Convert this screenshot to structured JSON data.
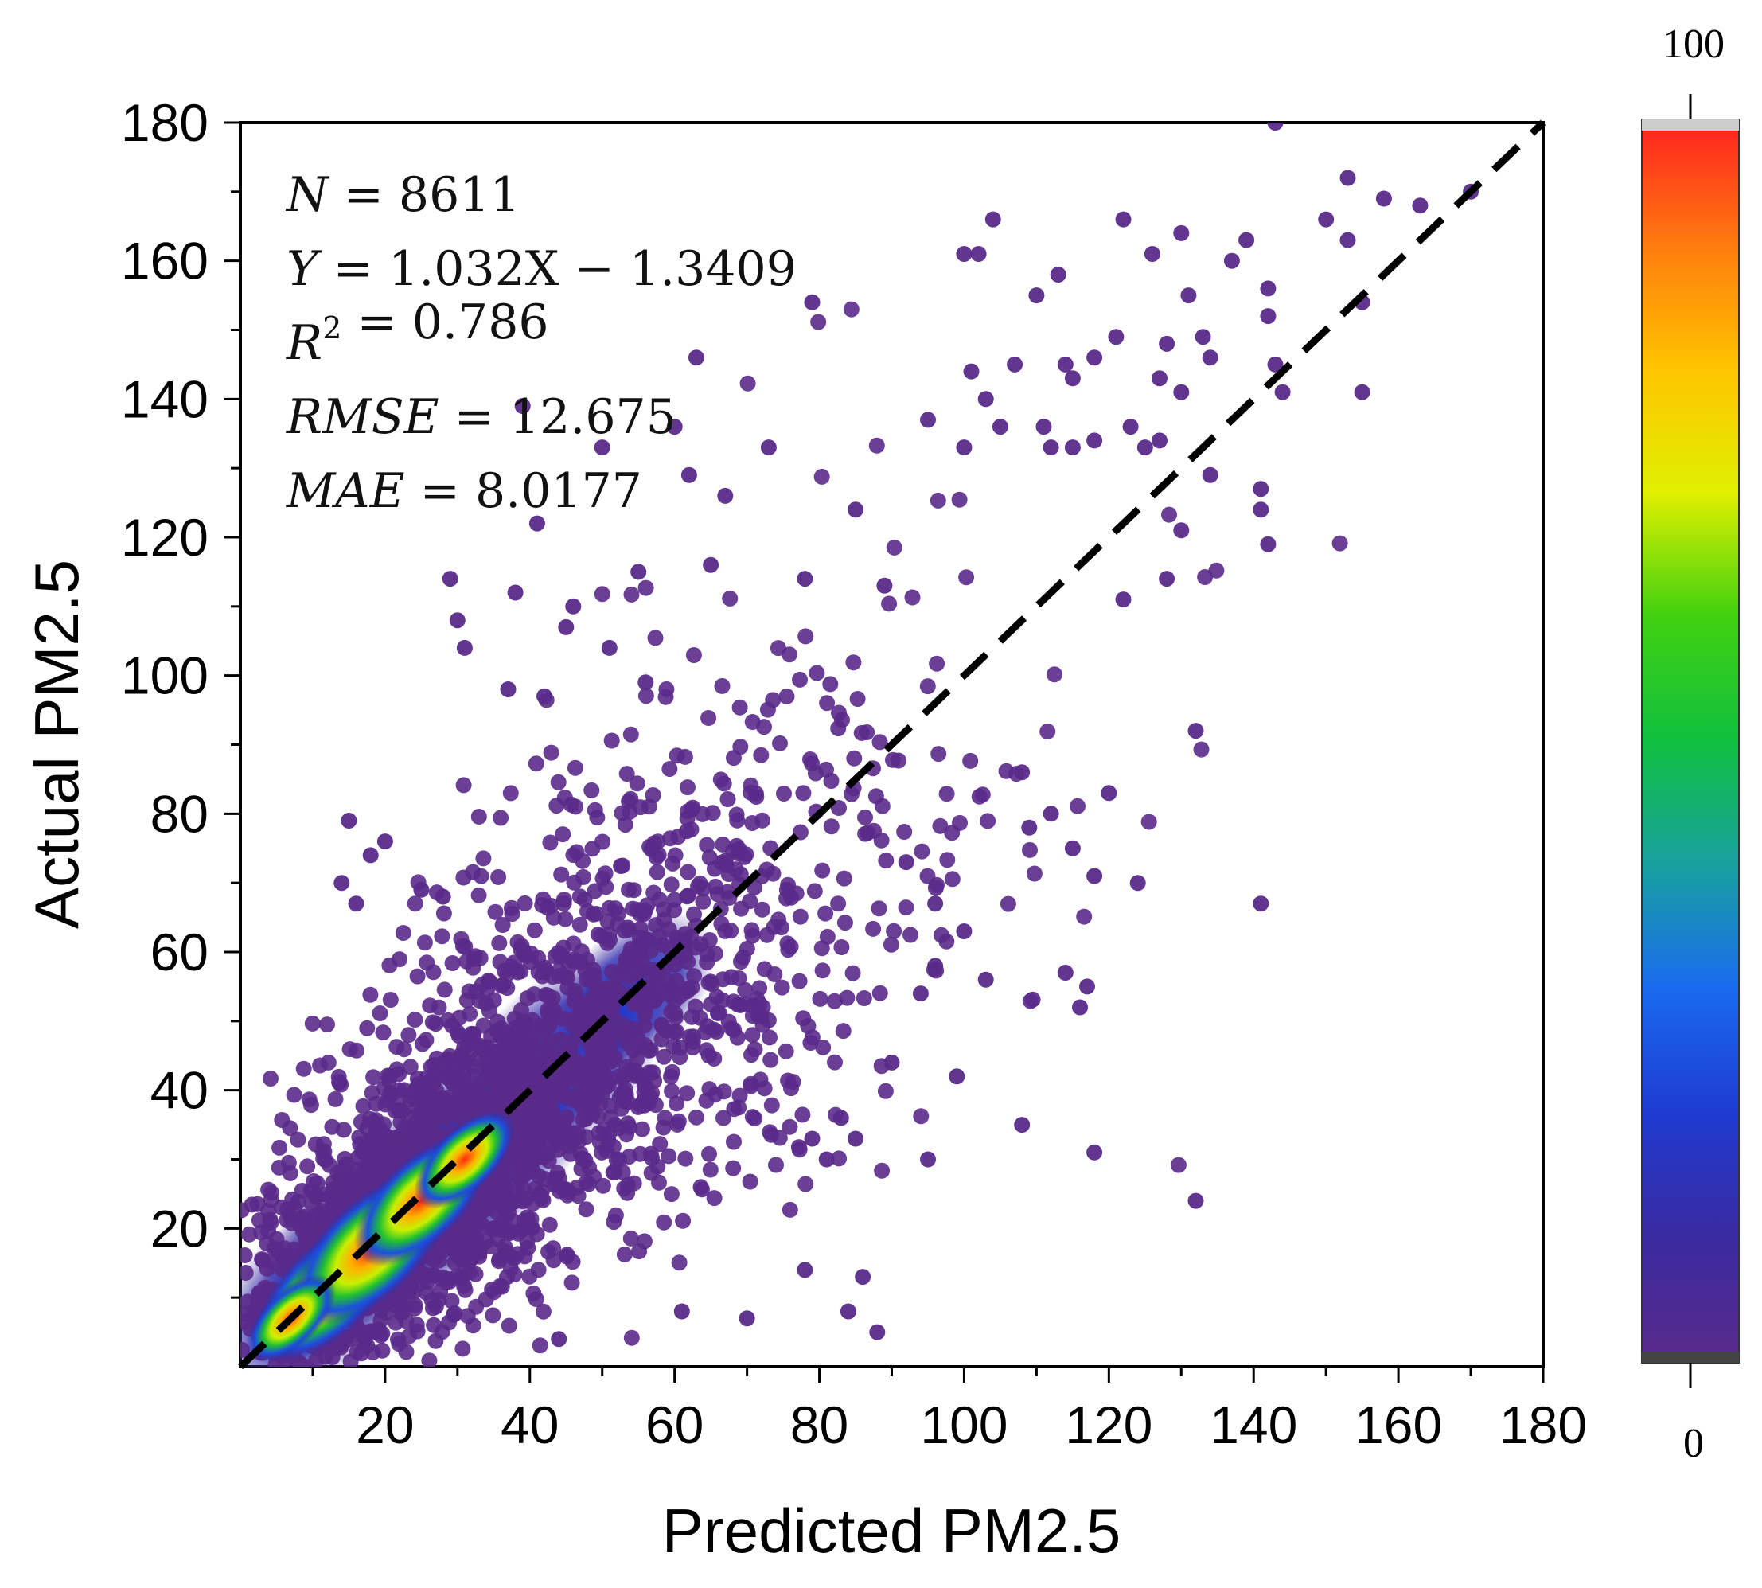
{
  "chart_data": {
    "type": "scatter",
    "subtype": "density-colored scatter",
    "xlabel": "Predicted PM2.5",
    "ylabel": "Actual PM2.5",
    "xlim": [
      0,
      180
    ],
    "ylim": [
      0,
      180
    ],
    "xticks": [
      20,
      40,
      60,
      80,
      100,
      120,
      140,
      160,
      180
    ],
    "yticks": [
      20,
      40,
      60,
      80,
      100,
      120,
      140,
      160,
      180
    ],
    "minor_tick_step": 10,
    "reference_line": {
      "style": "dashed",
      "color": "#000000",
      "x": [
        0,
        180
      ],
      "y": [
        0,
        180
      ]
    },
    "stats": [
      {
        "var": "N",
        "sup": "",
        "value": "8611"
      },
      {
        "var": "Y",
        "sup": "",
        "value": "1.032X − 1.3409"
      },
      {
        "var": "R",
        "sup": "2",
        "value": "0.786"
      },
      {
        "var": "RMSE",
        "sup": "",
        "value": "12.675"
      },
      {
        "var": "MAE",
        "sup": "",
        "value": "8.0177"
      }
    ],
    "colorbar": {
      "min": "0",
      "max": "100",
      "colors": [
        "#5a2a8a",
        "#3a2aa0",
        "#1f3ad0",
        "#1a6af0",
        "#18a0a0",
        "#10c040",
        "#40d010",
        "#e0f000",
        "#ffc400",
        "#ff7a10",
        "#ff2020"
      ]
    },
    "point_color": "#5a2a8a",
    "sample_points": [
      [
        143,
        180
      ],
      [
        170,
        170
      ],
      [
        153,
        172
      ],
      [
        158,
        169
      ],
      [
        163,
        168
      ],
      [
        150,
        166
      ],
      [
        153,
        163
      ],
      [
        122,
        166
      ],
      [
        104,
        166
      ],
      [
        100,
        161
      ],
      [
        102,
        161
      ],
      [
        130,
        164
      ],
      [
        139,
        163
      ],
      [
        126,
        161
      ],
      [
        113,
        158
      ],
      [
        137,
        160
      ],
      [
        142,
        156
      ],
      [
        110,
        155
      ],
      [
        131,
        155
      ],
      [
        155,
        154
      ],
      [
        79,
        154
      ],
      [
        142,
        152
      ],
      [
        133,
        149
      ],
      [
        121,
        149
      ],
      [
        128,
        148
      ],
      [
        118,
        146
      ],
      [
        134,
        146
      ],
      [
        63,
        146
      ],
      [
        114,
        145
      ],
      [
        107,
        145
      ],
      [
        143,
        145
      ],
      [
        101,
        144
      ],
      [
        115,
        143
      ],
      [
        127,
        143
      ],
      [
        130,
        141
      ],
      [
        155,
        141
      ],
      [
        144,
        141
      ],
      [
        39,
        139
      ],
      [
        103,
        140
      ],
      [
        60,
        136
      ],
      [
        95,
        137
      ],
      [
        105,
        136
      ],
      [
        111,
        136
      ],
      [
        123,
        136
      ],
      [
        73,
        133
      ],
      [
        100,
        133
      ],
      [
        112,
        133
      ],
      [
        118,
        134
      ],
      [
        127,
        134
      ],
      [
        50,
        133
      ],
      [
        115,
        133
      ],
      [
        125,
        133
      ],
      [
        134,
        129
      ],
      [
        62,
        129
      ],
      [
        141,
        127
      ],
      [
        67,
        126
      ],
      [
        85,
        124
      ],
      [
        141,
        124
      ],
      [
        142,
        119
      ],
      [
        41,
        122
      ],
      [
        130,
        121
      ],
      [
        128,
        114
      ],
      [
        122,
        111
      ],
      [
        29,
        114
      ],
      [
        55,
        115
      ],
      [
        65,
        116
      ],
      [
        78,
        114
      ],
      [
        89,
        113
      ],
      [
        38,
        112
      ],
      [
        46,
        110
      ],
      [
        30,
        108
      ],
      [
        31,
        104
      ],
      [
        45,
        107
      ],
      [
        51,
        104
      ],
      [
        56,
        99
      ],
      [
        37,
        98
      ],
      [
        42,
        97
      ],
      [
        15,
        79
      ],
      [
        18,
        74
      ],
      [
        20,
        76
      ],
      [
        25,
        69
      ],
      [
        28,
        68
      ],
      [
        14,
        70
      ],
      [
        16,
        67
      ],
      [
        132,
        92
      ],
      [
        120,
        83
      ],
      [
        108,
        86
      ],
      [
        112,
        80
      ],
      [
        109,
        78
      ],
      [
        115,
        75
      ],
      [
        118,
        71
      ],
      [
        124,
        70
      ],
      [
        141,
        67
      ],
      [
        96,
        67
      ],
      [
        92,
        73
      ],
      [
        100,
        63
      ],
      [
        96,
        58
      ],
      [
        103,
        56
      ],
      [
        114,
        57
      ],
      [
        117,
        55
      ],
      [
        116,
        52
      ],
      [
        94,
        54
      ],
      [
        90,
        44
      ],
      [
        99,
        42
      ],
      [
        108,
        35
      ],
      [
        118,
        31
      ],
      [
        95,
        30
      ],
      [
        83,
        36
      ],
      [
        85,
        33
      ],
      [
        79,
        33
      ],
      [
        81,
        30
      ],
      [
        132,
        24
      ],
      [
        86,
        13
      ],
      [
        88,
        5
      ],
      [
        84,
        8
      ],
      [
        78,
        14
      ],
      [
        70,
        7
      ],
      [
        61,
        8
      ],
      [
        44,
        4
      ]
    ]
  }
}
